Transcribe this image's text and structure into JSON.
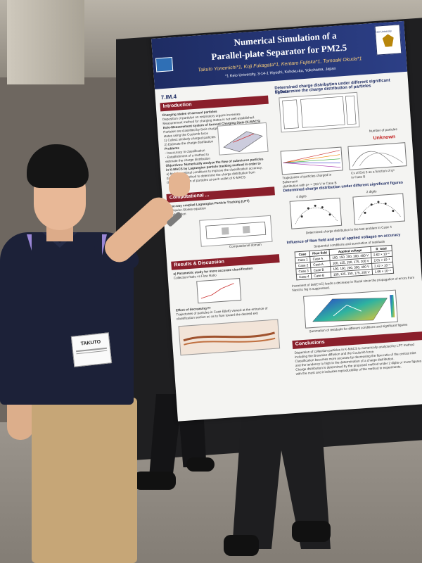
{
  "poster": {
    "title_line1": "Numerical Simulation of a",
    "title_line2": "Parallel-plate Separator for PM2.5",
    "authors": "Takuto Yonemichi*1, Koji Fukagata*1, Kentaro Fujioka*1, Tomoaki Okuda*1",
    "affiliation": "*1 Keio University, 3-14-1 Hiyoshi, Kohoku-ku, Yokohama, Japan",
    "emblem_text": "Keio University",
    "id": "7.IM.4",
    "sections": {
      "introduction": "Introduction",
      "computational": "Computational ...",
      "results": "Results & Discussion",
      "conclusions": "Conclusions",
      "charge_dist": "b) Determine the charge distribution of particles",
      "charge_sig": "Determined charge distribution under different significant figures",
      "flow_field": "Influence of flow field and set of applied voltages on accuracy"
    },
    "intro_lines": [
      "Charging states of aerosol particles",
      "Deposition of particles on respiratory organs increases",
      "Measurement method for charging states is not well established.",
      "Keio-Measurement system of Aerosol Charging State (K-MACS)",
      "Particles are classified by their charging",
      "states using the Coulomb force",
      "1) Collect similarly charged particles",
      "2) Estimate the charge distribution",
      "Problems",
      "- Inaccuracy in classification",
      "- Establishment of a method to",
      "  estimate the charge distribution",
      "Objectives: Numerically analyze the flow of submicron particles",
      "in K-MACS by Lagrangian particle tracking method in order to",
      "a) find the optimal conditions to improve the classification accuracy,",
      "b) propose a method to determine the charge distribution from",
      "the concentration of particles at each outlet of K-MACS."
    ],
    "comp_lines": [
      "One-way coupled Lagrangian Particle Tracking (LPT)",
      "... Navier-Stokes equation",
      "... of motion",
      "Computational domain"
    ],
    "results_lines": [
      "a) Parametric study for more accurate classification",
      "Collection Ratio vs Flow Ratio",
      "Effect of decreasing Fr",
      "Trajectories of particles in Case B(left) viewed at the entrance of",
      "classification section so as to flow toward the desired exit"
    ],
    "charge_labels": {
      "number_of_particles": "Number of particles",
      "unknown": "Unknown",
      "trajectories": "Trajectories of particles charged in Boltzmann",
      "distribution": "distribution with p+ = 200 V in Case B",
      "cx": "Cx of Exit 3 as a function of q+",
      "in_case_b": "in Case B"
    },
    "sig_labels": {
      "four_digits": "4 digits",
      "two_digits": "2 digits",
      "caption": "Determined charge distribution in the test problem in Case 4"
    },
    "table": {
      "caption": "Sequential conditions and summation of residuals",
      "headers": [
        "Case",
        "Flow field",
        "Applied voltage",
        "R_total"
      ],
      "rows": [
        [
          "Case 1",
          "Case A",
          "100, 150, 200, 300, 400 V",
          "2.62 × 10⁻²"
        ],
        [
          "Case 2",
          "Case A",
          "100, 125, 150, 175, 200 V",
          "2.01 × 10⁻²"
        ],
        [
          "Case 3",
          "Case B",
          "100, 150, 200, 300, 400 V",
          "2.42 × 10⁻³"
        ],
        [
          "Case 4",
          "Case B",
          "100, 125, 150, 175, 200 V",
          "1.66 × 10⁻⁴"
        ]
      ]
    },
    "flow_note": "Increment of det(C'xC) leads a decrease in Rtotal since the propagation of errors from Nexit to Nq is suppressed.",
    "flow_caption": "Summation of residuals for different conditions and significant figures",
    "conclusion_lines": [
      "Dispersion of collection particles in K-MACS is numerically analyzed by LPT method",
      "including the Brownian diffusion and the Coulomb force.",
      "Classification becomes more accurate by decreasing the flow ratio of the central inlet",
      "and the tendency to high in the determination of a charge distribution.",
      "Charge distribution is determined by the proposed method under 2 digits or more figures",
      "with the most and it indicates reproducibility of the method in experiments."
    ]
  },
  "badge": {
    "name": "TAKUTO"
  },
  "colors": {
    "poster_header": "#1e2c63",
    "section_bar": "#8a1f2b",
    "shirt": "#1c2138",
    "pants": "#c6a677",
    "lanyard": "#9a86d6",
    "booth_panel": "#1f1f21"
  }
}
